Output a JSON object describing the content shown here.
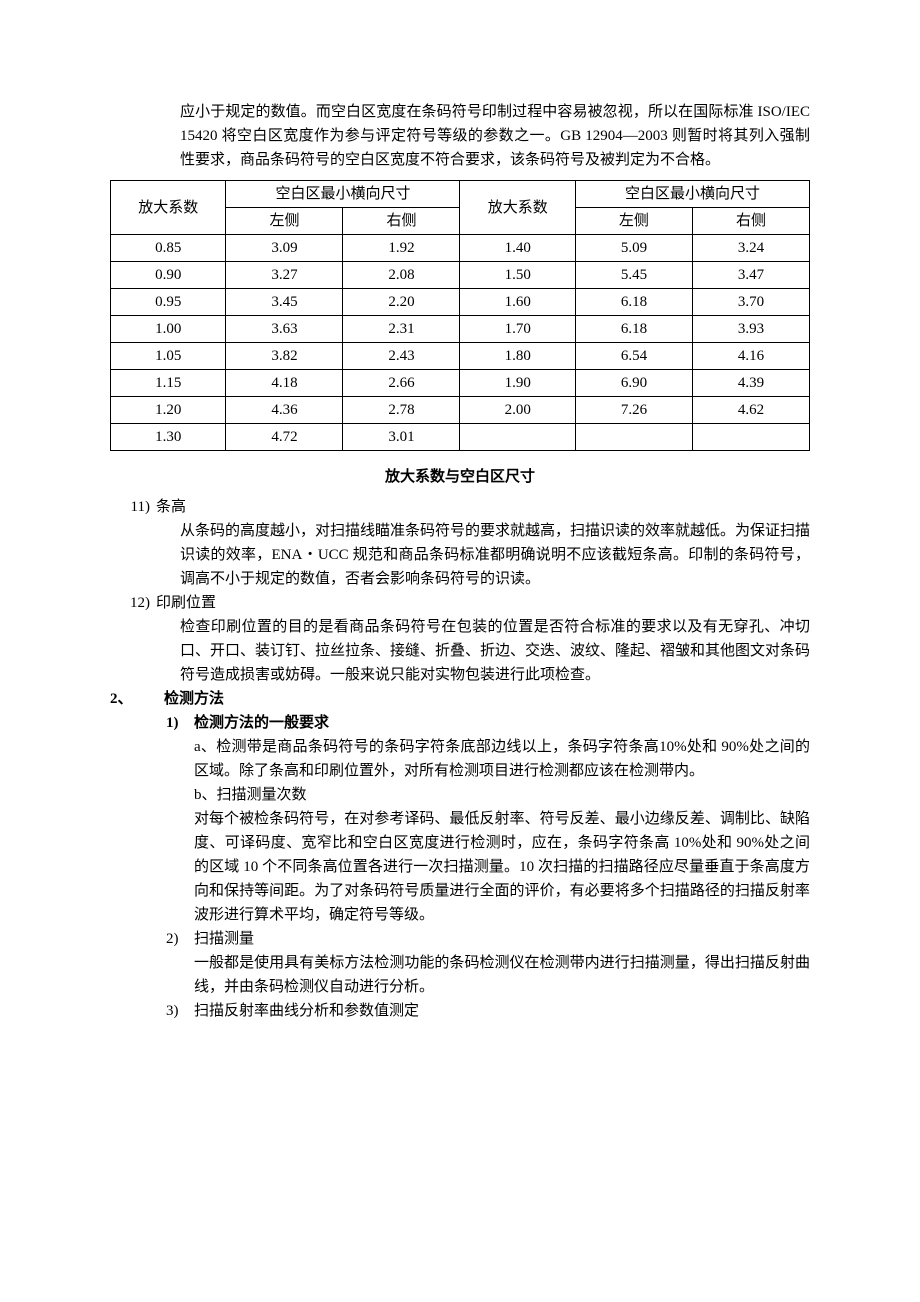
{
  "intro": "应小于规定的数值。而空白区宽度在条码符号印制过程中容易被忽视，所以在国际标准 ISO/IEC 15420 将空白区宽度作为参与评定符号等级的参数之一。GB 12904—2003 则暂时将其列入强制性要求，商品条码符号的空白区宽度不符合要求，该条码符号及被判定为不合格。",
  "table": {
    "h_left_factor": "放大系数",
    "h_left_size": "空白区最小横向尺寸",
    "h_right_factor": "放大系数",
    "h_right_size": "空白区最小横向尺寸",
    "h_l": "左侧",
    "h_r": "右侧",
    "rows": [
      {
        "a": "0.85",
        "b": "3.09",
        "c": "1.92",
        "d": "1.40",
        "e": "5.09",
        "f": "3.24"
      },
      {
        "a": "0.90",
        "b": "3.27",
        "c": "2.08",
        "d": "1.50",
        "e": "5.45",
        "f": "3.47"
      },
      {
        "a": "0.95",
        "b": "3.45",
        "c": "2.20",
        "d": "1.60",
        "e": "6.18",
        "f": "3.70"
      },
      {
        "a": "1.00",
        "b": "3.63",
        "c": "2.31",
        "d": "1.70",
        "e": "6.18",
        "f": "3.93"
      },
      {
        "a": "1.05",
        "b": "3.82",
        "c": "2.43",
        "d": "1.80",
        "e": "6.54",
        "f": "4.16"
      },
      {
        "a": "1.15",
        "b": "4.18",
        "c": "2.66",
        "d": "1.90",
        "e": "6.90",
        "f": "4.39"
      },
      {
        "a": "1.20",
        "b": "4.36",
        "c": "2.78",
        "d": "2.00",
        "e": "7.26",
        "f": "4.62"
      },
      {
        "a": "1.30",
        "b": "4.72",
        "c": "3.01",
        "d": "",
        "e": "",
        "f": ""
      }
    ]
  },
  "caption": "放大系数与空白区尺寸",
  "item11": {
    "num": "11)",
    "title": "条高",
    "body": "从条码的高度越小，对扫描线瞄准条码符号的要求就越高，扫描识读的效率就越低。为保证扫描识读的效率，ENA・UCC 规范和商品条码标准都明确说明不应该截短条高。印制的条码符号，调高不小于规定的数值，否者会影响条码符号的识读。"
  },
  "item12": {
    "num": "12)",
    "title": "印刷位置",
    "body": "检查印刷位置的目的是看商品条码符号在包装的位置是否符合标准的要求以及有无穿孔、冲切口、开口、装订钉、拉丝拉条、接缝、折叠、折边、交迭、波纹、隆起、褶皱和其他图文对条码符号造成损害或妨碍。一般来说只能对实物包装进行此项检查。"
  },
  "section2": {
    "num": "2、",
    "title": "检测方法"
  },
  "sub1": {
    "num": "1)",
    "title": "检测方法的一般要求",
    "a": "a、检测带是商品条码符号的条码字符条底部边线以上，条码字符条高10%处和 90%处之间的区域。除了条高和印刷位置外，对所有检测项目进行检测都应该在检测带内。",
    "b_title": "b、扫描测量次数",
    "b_body": "对每个被检条码符号，在对参考译码、最低反射率、符号反差、最小边缘反差、调制比、缺陷度、可译码度、宽窄比和空白区宽度进行检测时，应在，条码字符条高 10%处和 90%处之间的区域 10 个不同条高位置各进行一次扫描测量。10 次扫描的扫描路径应尽量垂直于条高度方向和保持等间距。为了对条码符号质量进行全面的评价，有必要将多个扫描路径的扫描反射率波形进行算术平均，确定符号等级。"
  },
  "sub2": {
    "num": "2)",
    "title": "扫描测量",
    "body": "一般都是使用具有美标方法检测功能的条码检测仪在检测带内进行扫描测量，得出扫描反射曲线，并由条码检测仪自动进行分析。"
  },
  "sub3": {
    "num": "3)",
    "title": "扫描反射率曲线分析和参数值测定"
  }
}
